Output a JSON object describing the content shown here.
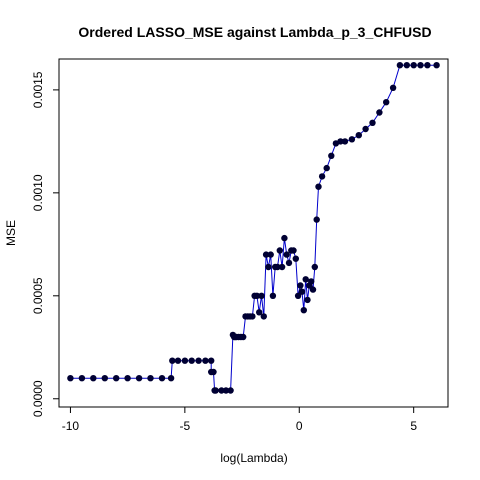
{
  "chart_data": {
    "type": "line",
    "title": "Ordered LASSO_MSE against Lambda_p_3_CHFUSD",
    "xlabel": "log(Lambda)",
    "ylabel": "MSE",
    "xlim": [
      -10.5,
      6.5
    ],
    "ylim": [
      -4e-05,
      0.00165
    ],
    "xticks": [
      -10,
      -5,
      0,
      5
    ],
    "xtick_labels": [
      "-10",
      "-5",
      "0",
      "5"
    ],
    "yticks": [
      0.0,
      0.0005,
      0.001,
      0.0015
    ],
    "ytick_labels": [
      "0.0000",
      "0.0005",
      "0.0010",
      "0.0015"
    ],
    "grid": false,
    "legend": "none",
    "colors": {
      "line": "#0000cc",
      "point": "#000033"
    },
    "series": [
      {
        "x": [
          -10.0,
          -9.5,
          -9.0,
          -8.5,
          -8.0,
          -7.5,
          -7.0,
          -6.5,
          -6.0,
          -5.6,
          -5.55,
          -5.3,
          -5.0,
          -4.7,
          -4.4,
          -4.1,
          -3.85,
          -3.85,
          -3.75,
          -3.7,
          -3.65,
          -3.4,
          -3.2,
          -3.0,
          -2.9,
          -2.85,
          -2.8,
          -2.75,
          -2.65,
          -2.55,
          -2.45,
          -2.35,
          -2.25,
          -2.15,
          -2.05,
          -1.95,
          -1.85,
          -1.75,
          -1.65,
          -1.55,
          -1.45,
          -1.35,
          -1.25,
          -1.15,
          -1.05,
          -0.95,
          -0.85,
          -0.75,
          -0.65,
          -0.55,
          -0.45,
          -0.35,
          -0.25,
          -0.15,
          -0.05,
          0.05,
          0.12,
          0.2,
          0.28,
          0.36,
          0.44,
          0.52,
          0.6,
          0.68,
          0.76,
          0.84,
          1.0,
          1.2,
          1.4,
          1.6,
          1.8,
          2.0,
          2.3,
          2.6,
          2.9,
          3.2,
          3.5,
          3.8,
          4.1,
          4.4,
          4.7,
          5.0,
          5.3,
          5.6,
          6.0
        ],
        "y": [
          0.0001,
          0.0001,
          0.0001,
          0.0001,
          0.0001,
          0.0001,
          0.0001,
          0.0001,
          0.0001,
          0.0001,
          0.000185,
          0.000185,
          0.000185,
          0.000185,
          0.000185,
          0.000185,
          0.000185,
          0.00013,
          0.00013,
          4e-05,
          4e-05,
          4e-05,
          4e-05,
          4e-05,
          0.00031,
          0.0003,
          0.0003,
          0.0003,
          0.0003,
          0.0003,
          0.0003,
          0.0004,
          0.0004,
          0.0004,
          0.0004,
          0.0005,
          0.0005,
          0.00042,
          0.0005,
          0.0004,
          0.0007,
          0.00064,
          0.0007,
          0.0005,
          0.00064,
          0.00064,
          0.00072,
          0.00064,
          0.00078,
          0.0007,
          0.00066,
          0.00072,
          0.00072,
          0.00068,
          0.0005,
          0.00055,
          0.00052,
          0.00043,
          0.00058,
          0.00048,
          0.00055,
          0.00057,
          0.00053,
          0.00064,
          0.00087,
          0.00103,
          0.00108,
          0.00112,
          0.00118,
          0.00124,
          0.00125,
          0.00125,
          0.00126,
          0.00128,
          0.00131,
          0.00134,
          0.00139,
          0.00144,
          0.00151,
          0.00162,
          0.00162,
          0.00162,
          0.00162,
          0.00162,
          0.00162
        ]
      }
    ]
  }
}
